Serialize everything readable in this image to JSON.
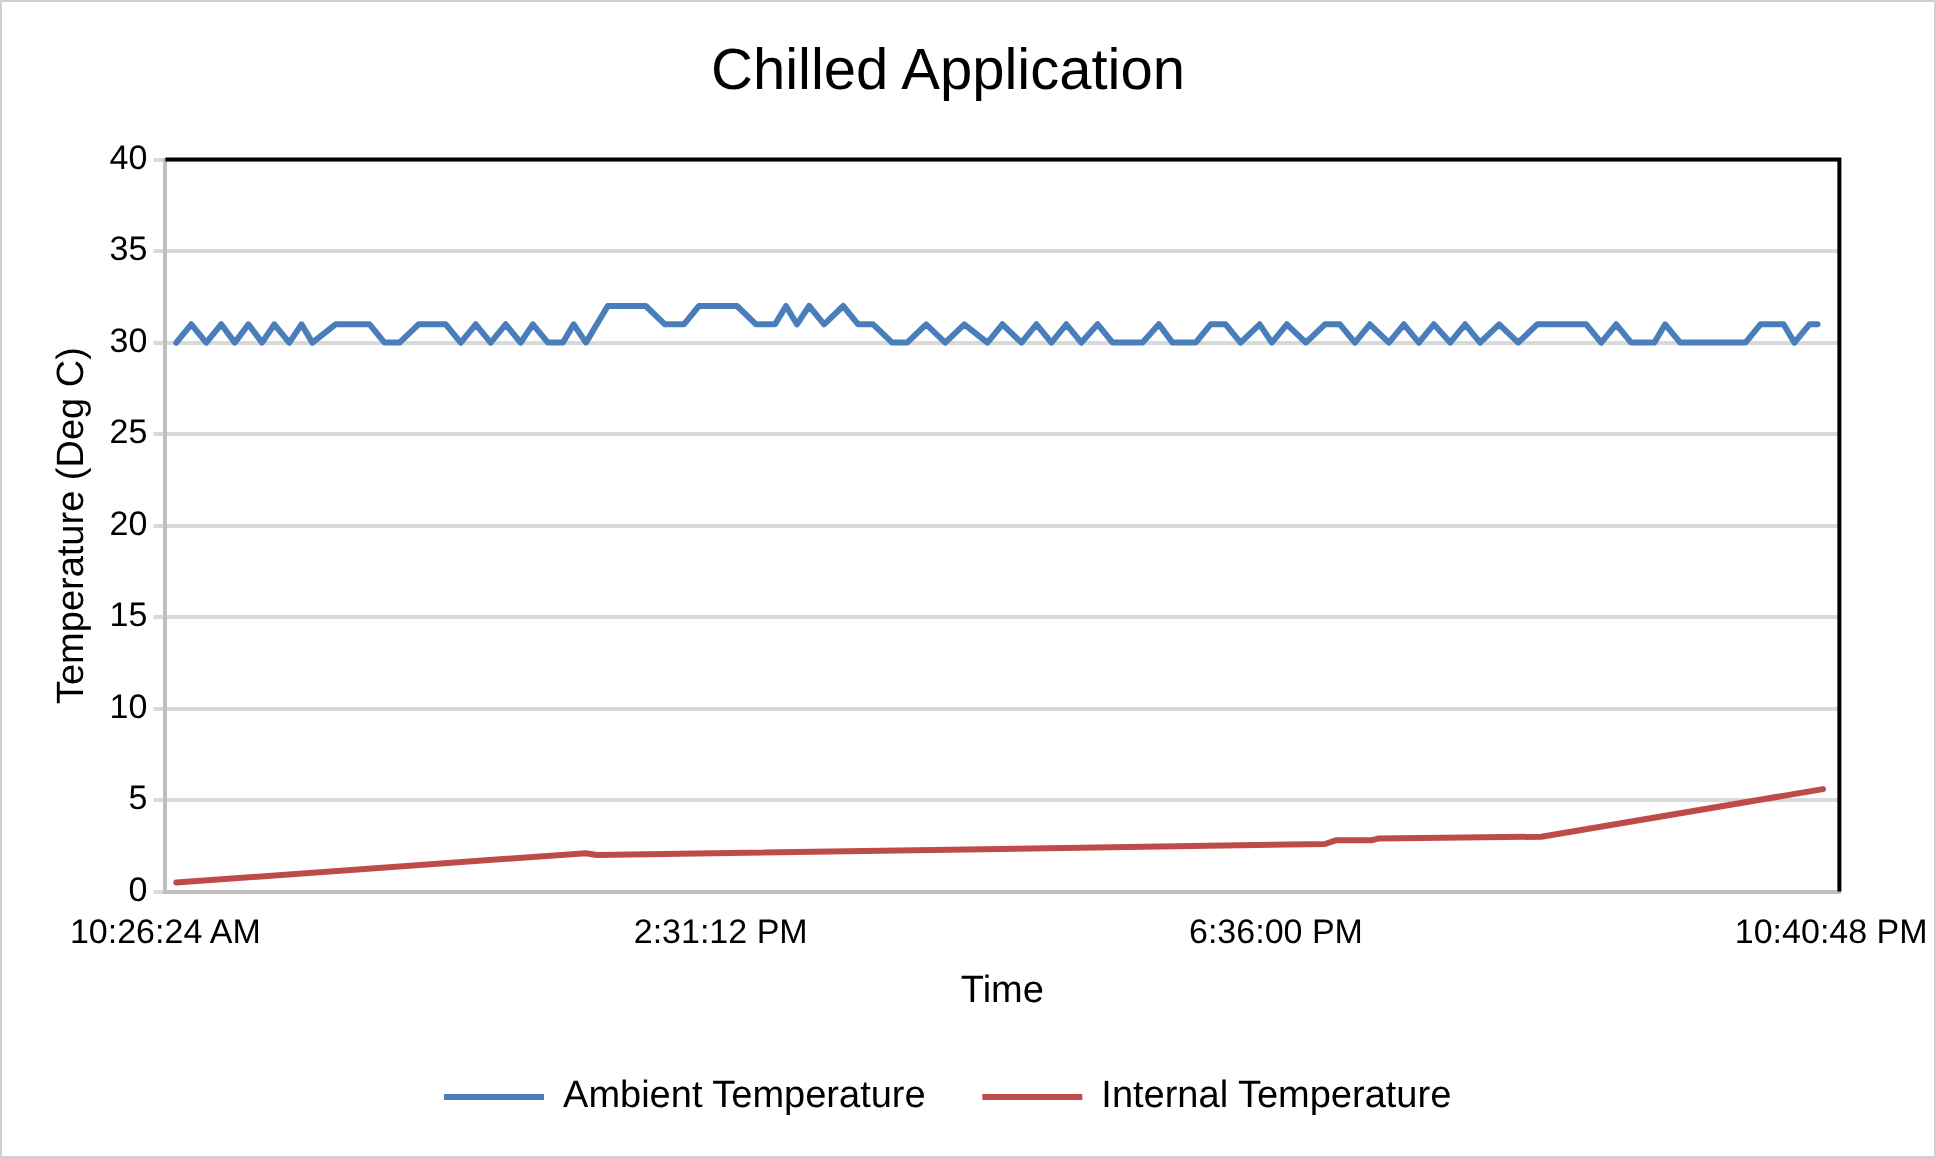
{
  "chart_data": {
    "type": "line",
    "title": "Chilled Application",
    "xlabel": "Time",
    "ylabel": "Temperature (Deg C)",
    "xlim": [
      10.44,
      22.74
    ],
    "xticks": [
      {
        "value": 10.44,
        "label": "10:26:24 AM"
      },
      {
        "value": 14.52,
        "label": "2:31:12 PM"
      },
      {
        "value": 18.6,
        "label": "6:36:00 PM"
      },
      {
        "value": 22.68,
        "label": "10:40:48 PM"
      }
    ],
    "ylim": [
      0,
      40
    ],
    "yticks": [
      0,
      5,
      10,
      15,
      20,
      25,
      30,
      35,
      40
    ],
    "grid": "y",
    "legend": "bottom",
    "marker": "none",
    "line_style": "solid",
    "series": [
      {
        "name": "Ambient Temperature",
        "color": "#4a7ebb",
        "x": [
          10.52,
          10.63,
          10.74,
          10.85,
          10.95,
          11.05,
          11.15,
          11.24,
          11.35,
          11.44,
          11.52,
          11.69,
          11.94,
          12.05,
          12.16,
          12.3,
          12.5,
          12.61,
          12.72,
          12.83,
          12.94,
          13.05,
          13.14,
          13.25,
          13.36,
          13.44,
          13.53,
          13.69,
          13.97,
          14.11,
          14.25,
          14.36,
          14.64,
          14.78,
          14.92,
          15.0,
          15.08,
          15.17,
          15.28,
          15.42,
          15.53,
          15.64,
          15.78,
          15.89,
          16.03,
          16.17,
          16.31,
          16.48,
          16.59,
          16.73,
          16.84,
          16.95,
          17.06,
          17.17,
          17.29,
          17.4,
          17.62,
          17.74,
          17.84,
          18.01,
          18.12,
          18.23,
          18.34,
          18.48,
          18.57,
          18.68,
          18.82,
          18.96,
          19.07,
          19.18,
          19.29,
          19.43,
          19.54,
          19.65,
          19.76,
          19.88,
          19.99,
          20.1,
          20.24,
          20.38,
          20.52,
          20.88,
          20.99,
          21.1,
          21.21,
          21.38,
          21.46,
          21.57,
          22.05,
          22.16,
          22.33,
          22.41,
          22.52,
          22.58
        ],
        "values": [
          30,
          31,
          30,
          31,
          30,
          31,
          30,
          31,
          30,
          31,
          30,
          31,
          31,
          30,
          30,
          31,
          31,
          30,
          31,
          30,
          31,
          30,
          31,
          30,
          30,
          31,
          30,
          32,
          32,
          31,
          31,
          32,
          32,
          31,
          31,
          32,
          31,
          32,
          31,
          32,
          31,
          31,
          30,
          30,
          31,
          30,
          31,
          30,
          31,
          30,
          31,
          30,
          31,
          30,
          31,
          30,
          30,
          31,
          30,
          30,
          31,
          31,
          30,
          31,
          30,
          31,
          30,
          31,
          31,
          30,
          31,
          30,
          31,
          30,
          31,
          30,
          31,
          30,
          31,
          30,
          31,
          31,
          30,
          31,
          30,
          30,
          31,
          30,
          30,
          31,
          31,
          30,
          31,
          31
        ]
      },
      {
        "name": "Internal Temperature",
        "color": "#be4b48",
        "x": [
          10.52,
          13.53,
          13.61,
          18.96,
          19.04,
          19.3,
          19.35,
          20.55,
          22.62
        ],
        "values": [
          0.5,
          2.1,
          2.0,
          2.6,
          2.8,
          2.8,
          2.9,
          3.0,
          5.6
        ]
      }
    ]
  }
}
